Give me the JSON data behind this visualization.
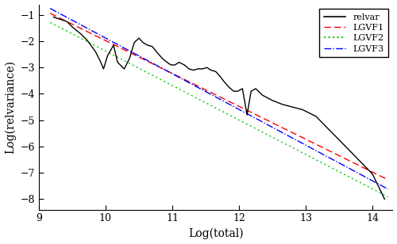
{
  "title": "",
  "xlabel": "Log(total)",
  "ylabel": "Log(relvariance)",
  "xlim": [
    9.0,
    14.3
  ],
  "ylim": [
    -8.4,
    -0.6
  ],
  "xticks": [
    9,
    10,
    11,
    12,
    13,
    14
  ],
  "yticks": [
    -8,
    -7,
    -6,
    -5,
    -4,
    -3,
    -2,
    -1
  ],
  "relvar_x": [
    9.22,
    9.42,
    9.52,
    9.62,
    9.72,
    9.78,
    9.85,
    9.92,
    9.97,
    10.03,
    10.12,
    10.18,
    10.28,
    10.36,
    10.43,
    10.5,
    10.56,
    10.63,
    10.7,
    10.78,
    10.85,
    10.92,
    10.98,
    11.04,
    11.1,
    11.18,
    11.25,
    11.32,
    11.38,
    11.45,
    11.52,
    11.58,
    11.65,
    11.72,
    11.78,
    11.85,
    11.92,
    11.98,
    12.05,
    12.12,
    12.18,
    12.25,
    12.35,
    12.5,
    12.65,
    12.8,
    12.95,
    13.15,
    13.5,
    14.0,
    14.18
  ],
  "relvar_y": [
    -1.08,
    -1.25,
    -1.5,
    -1.7,
    -1.95,
    -2.15,
    -2.4,
    -2.75,
    -3.05,
    -2.55,
    -2.15,
    -2.8,
    -3.05,
    -2.65,
    -2.05,
    -1.88,
    -2.05,
    -2.15,
    -2.2,
    -2.45,
    -2.65,
    -2.8,
    -2.9,
    -2.9,
    -2.8,
    -2.9,
    -3.05,
    -3.1,
    -3.05,
    -3.05,
    -3.0,
    -3.1,
    -3.15,
    -3.35,
    -3.55,
    -3.75,
    -3.9,
    -3.9,
    -3.8,
    -4.8,
    -3.9,
    -3.8,
    -4.05,
    -4.25,
    -4.4,
    -4.5,
    -4.6,
    -4.85,
    -5.75,
    -7.05,
    -8.0
  ],
  "lgvf1_x0": 9.22,
  "lgvf1_y0": -1.0,
  "lgvf1_x1": 14.18,
  "lgvf1_y1": -7.2,
  "lgvf2_x0": 9.22,
  "lgvf2_y0": -1.35,
  "lgvf2_x1": 14.18,
  "lgvf2_y1": -7.85,
  "lgvf3_x0": 9.22,
  "lgvf3_y0": -0.82,
  "lgvf3_x1": 14.18,
  "lgvf3_y1": -7.55,
  "relvar_color": "#000000",
  "lgvf1_color": "#FF0000",
  "lgvf2_color": "#00CC00",
  "lgvf3_color": "#0000FF",
  "bg_color": "#FFFFFF",
  "figsize": [
    5.0,
    3.08
  ],
  "dpi": 100
}
